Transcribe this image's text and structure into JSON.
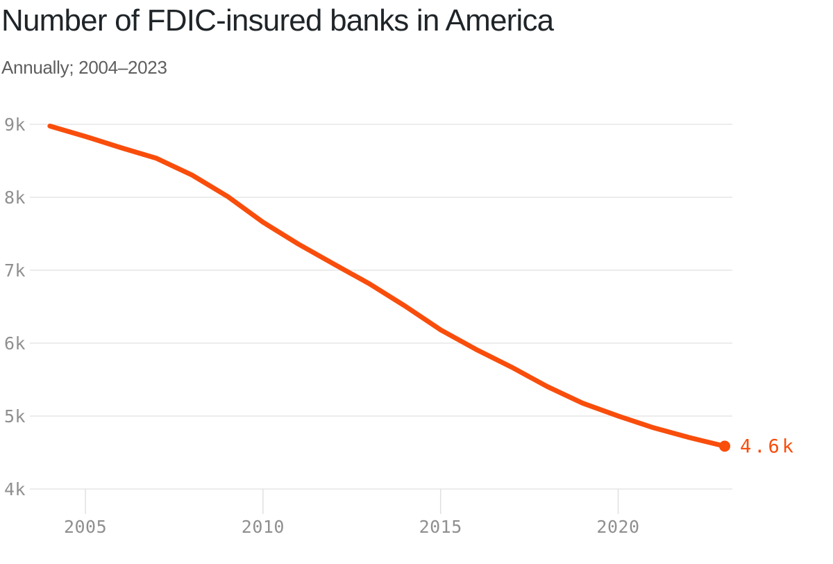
{
  "chart_data": {
    "type": "line",
    "title": "Number of FDIC-insured banks in America",
    "subtitle": "Annually; 2004–2023",
    "x": [
      2004,
      2005,
      2006,
      2007,
      2008,
      2009,
      2010,
      2011,
      2012,
      2013,
      2014,
      2015,
      2016,
      2017,
      2018,
      2019,
      2020,
      2021,
      2022,
      2023
    ],
    "values": [
      8976,
      8833,
      8680,
      8534,
      8305,
      8012,
      7658,
      7357,
      7083,
      6812,
      6509,
      6182,
      5913,
      5670,
      5406,
      5177,
      5001,
      4839,
      4706,
      4587
    ],
    "end_point_label": "4.6k",
    "yticks": [
      {
        "value": 9000,
        "label": "9k"
      },
      {
        "value": 8000,
        "label": "8k"
      },
      {
        "value": 7000,
        "label": "7k"
      },
      {
        "value": 6000,
        "label": "6k"
      },
      {
        "value": 5000,
        "label": "5k"
      },
      {
        "value": 4000,
        "label": "4k"
      }
    ],
    "xticks": [
      {
        "value": 2005,
        "label": "2005"
      },
      {
        "value": 2010,
        "label": "2010"
      },
      {
        "value": 2015,
        "label": "2015"
      },
      {
        "value": 2020,
        "label": "2020"
      }
    ],
    "xlim": [
      2004,
      2023
    ],
    "ylim": [
      4000,
      9000
    ],
    "grid": true,
    "legend": "none",
    "colors": {
      "line": "#f94d0c",
      "grid": "#e6e6e6",
      "tick": "#e0e0e0",
      "tick_label": "#8f8f8f",
      "title": "#1f2428",
      "subtitle": "#5e5e5e",
      "background": "#ffffff"
    }
  }
}
